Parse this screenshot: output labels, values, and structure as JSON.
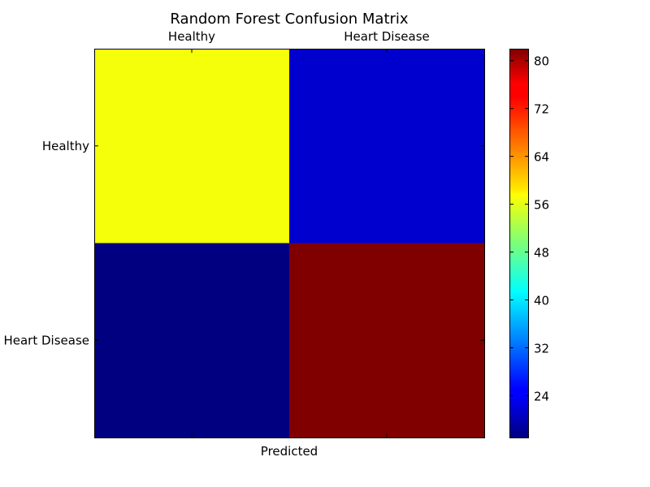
{
  "chart_data": {
    "type": "heatmap",
    "title": "Random Forest Confusion Matrix",
    "xlabel": "Predicted",
    "ylabel": "",
    "x_categories": [
      "Healthy",
      "Heart Disease"
    ],
    "y_categories": [
      "Healthy",
      "Heart Disease"
    ],
    "matrix": [
      [
        57,
        22
      ],
      [
        17,
        82
      ]
    ],
    "colormap": "jet",
    "color_range": [
      17,
      82
    ],
    "colorbar_ticks": [
      24,
      32,
      40,
      48,
      56,
      64,
      72,
      80
    ],
    "x_tick_position": "top",
    "grid": false
  }
}
